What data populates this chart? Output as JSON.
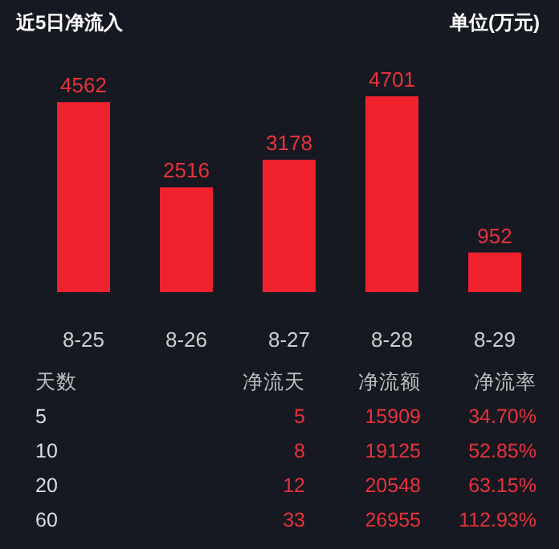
{
  "chart_data": [
    {
      "type": "bar",
      "title": "近5日净流入",
      "subtitle": "单位(万元)",
      "categories": [
        "8-25",
        "8-26",
        "8-27",
        "8-28",
        "8-29"
      ],
      "values": [
        4562,
        2516,
        3178,
        4701,
        952
      ],
      "color": "#f0222e",
      "data_labels": true
    },
    {
      "type": "other",
      "annotations": [
        "天数",
        "净流天",
        "净流额",
        "净流率",
        "5",
        "5",
        "15909",
        "34.70%",
        "10",
        "8",
        "19125",
        "52.85%",
        "20",
        "12",
        "20548",
        "63.15%",
        "60",
        "33",
        "26955",
        "112.93%"
      ]
    }
  ]
}
